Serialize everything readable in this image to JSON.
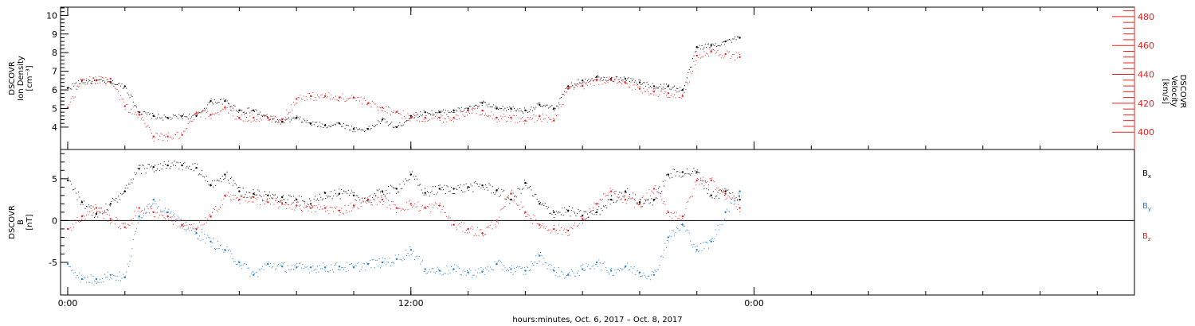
{
  "chart_data": [
    {
      "type": "scatter",
      "panel": "density-velocity",
      "ylabel_lines": [
        "DSCOVR",
        "Ion  Density",
        "[cm⁻³]"
      ],
      "ylabel_right_lines": [
        "DSCOVR",
        "Velocity",
        "[km/s]"
      ],
      "ylim": [
        2.8,
        10.4
      ],
      "yticks": [
        4,
        5,
        6,
        7,
        8,
        9,
        10
      ],
      "ylim_right": [
        388,
        486
      ],
      "yticks_right": [
        400,
        420,
        440,
        460,
        480
      ],
      "right_axis_color": "#e8231e",
      "series": [
        {
          "axis": "left",
          "color": "#000000",
          "x": [
            0,
            0.5,
            1,
            1.5,
            2,
            2.5,
            3,
            3.5,
            4,
            4.5,
            5,
            5.5,
            6,
            6.5,
            7,
            7.5,
            8,
            8.5,
            9,
            9.5,
            10,
            10.5,
            11,
            11.5,
            12,
            12.5,
            13,
            13.5,
            14,
            14.5,
            15,
            15.5,
            16,
            16.5,
            17,
            17.5,
            18,
            18.5,
            19,
            19.5,
            20,
            20.5,
            21,
            21.5,
            22,
            22.5,
            23,
            23.5
          ],
          "y": [
            6.1,
            6.5,
            6.5,
            6.4,
            6.2,
            4.8,
            4.6,
            4.5,
            4.6,
            4.6,
            5.4,
            5.4,
            4.9,
            4.9,
            4.5,
            4.3,
            4.5,
            4.2,
            4.1,
            4.2,
            3.9,
            3.9,
            4.4,
            4.0,
            4.6,
            4.8,
            4.8,
            4.9,
            5.0,
            5.3,
            5.0,
            5.0,
            4.9,
            5.2,
            5.0,
            6.2,
            6.5,
            6.7,
            6.6,
            6.6,
            6.4,
            6.2,
            6.2,
            6.0,
            8.3,
            8.4,
            8.6,
            8.8
          ]
        },
        {
          "axis": "right",
          "color": "#e8231e",
          "x": [
            0,
            0.5,
            1,
            1.5,
            2,
            2.5,
            3,
            3.5,
            4,
            4.5,
            5,
            5.5,
            6,
            6.5,
            7,
            7.5,
            8,
            8.5,
            9,
            9.5,
            10,
            10.5,
            11,
            11.5,
            12,
            12.5,
            13,
            13.5,
            14,
            14.5,
            15,
            15.5,
            16,
            16.5,
            17,
            17.5,
            18,
            18.5,
            19,
            19.5,
            20,
            20.5,
            21,
            21.5,
            22,
            22.5,
            23,
            23.5
          ],
          "y": [
            417,
            436,
            436,
            437,
            418,
            412,
            397,
            397,
            398,
            413,
            412,
            417,
            410,
            410,
            410,
            409,
            423,
            425,
            425,
            424,
            424,
            420,
            417,
            414,
            410,
            410,
            410,
            410,
            415,
            415,
            410,
            410,
            408,
            411,
            408,
            430,
            432,
            436,
            436,
            434,
            430,
            428,
            427,
            425,
            453,
            456,
            454,
            452
          ]
        }
      ]
    },
    {
      "type": "scatter",
      "panel": "magnetic-field",
      "ylabel_lines": [
        "DSCOVR",
        "B",
        "[nT]"
      ],
      "ylim": [
        -8.9,
        8.5
      ],
      "yticks": [
        -5,
        0,
        5
      ],
      "zero_line": true,
      "legend_position": "right",
      "series": [
        {
          "name": "Bx",
          "color": "#000000",
          "x": [
            0,
            0.5,
            1,
            1.5,
            2,
            2.5,
            3,
            3.5,
            4,
            4.5,
            5,
            5.5,
            6,
            6.5,
            7,
            7.5,
            8,
            8.5,
            9,
            9.5,
            10,
            10.5,
            11,
            11.5,
            12,
            12.5,
            13,
            13.5,
            14,
            14.5,
            15,
            15.5,
            16,
            16.5,
            17,
            17.5,
            18,
            18.5,
            19,
            19.5,
            20,
            20.5,
            21,
            21.5,
            22,
            22.5,
            23,
            23.5
          ],
          "y": [
            4.8,
            2.2,
            0.8,
            2.0,
            3.5,
            6.2,
            6.4,
            6.6,
            6.6,
            6.3,
            4.2,
            5.5,
            3.5,
            3.2,
            3.0,
            2.8,
            2.5,
            2.0,
            3.3,
            3.2,
            3.0,
            2.5,
            3.5,
            3.8,
            5.5,
            3.3,
            3.8,
            3.8,
            4.0,
            4.2,
            3.6,
            2.5,
            4.5,
            2.0,
            1.0,
            1.2,
            0.6,
            1.0,
            2.5,
            3.5,
            2.2,
            2.5,
            5.5,
            5.8,
            5.8,
            3.0,
            3.5,
            2.5
          ]
        },
        {
          "name": "By",
          "color": "#1f7fd0",
          "x": [
            0,
            0.5,
            1,
            1.5,
            2,
            2.5,
            3,
            3.5,
            4,
            4.5,
            5,
            5.5,
            6,
            6.5,
            7,
            7.5,
            8,
            8.5,
            9,
            9.5,
            10,
            10.5,
            11,
            11.5,
            12,
            12.5,
            13,
            13.5,
            14,
            14.5,
            15,
            15.5,
            16,
            16.5,
            17,
            17.5,
            18,
            18.5,
            19,
            19.5,
            20,
            20.5,
            21,
            21.5,
            22,
            22.5,
            23,
            23.5
          ],
          "y": [
            -5.2,
            -7.0,
            -7.0,
            -6.5,
            -6.8,
            0.5,
            2.5,
            1.0,
            -0.5,
            -1.5,
            -2.5,
            -3.5,
            -5.0,
            -6.5,
            -5.2,
            -5.5,
            -5.6,
            -5.6,
            -5.6,
            -5.5,
            -5.6,
            -5.2,
            -5.0,
            -4.6,
            -3.5,
            -5.8,
            -6.0,
            -5.8,
            -6.2,
            -6.1,
            -5.2,
            -5.8,
            -6.0,
            -4.2,
            -6.0,
            -6.5,
            -5.8,
            -5.0,
            -6.0,
            -5.5,
            -6.2,
            -6.5,
            -2.0,
            -0.5,
            -3.5,
            -2.5,
            1.0,
            3.5
          ]
        },
        {
          "name": "Bz",
          "color": "#e8231e",
          "x": [
            0,
            0.5,
            1,
            1.5,
            2,
            2.5,
            3,
            3.5,
            4,
            4.5,
            5,
            5.5,
            6,
            6.5,
            7,
            7.5,
            8,
            8.5,
            9,
            9.5,
            10,
            10.5,
            11,
            11.5,
            12,
            12.5,
            13,
            13.5,
            14,
            14.5,
            15,
            15.5,
            16,
            16.5,
            17,
            17.5,
            18,
            18.5,
            19,
            19.5,
            20,
            20.5,
            21,
            21.5,
            22,
            22.5,
            23,
            23.5
          ],
          "y": [
            -1.0,
            0.5,
            1.5,
            0.2,
            -0.8,
            1.5,
            1.0,
            0.5,
            -0.5,
            -1.0,
            0.5,
            3.0,
            2.5,
            2.8,
            2.2,
            2.0,
            1.8,
            1.5,
            1.5,
            1.2,
            1.8,
            2.5,
            2.5,
            1.5,
            2.0,
            1.5,
            1.8,
            -0.5,
            -1.0,
            -1.5,
            0.0,
            3.2,
            1.0,
            -0.5,
            -1.0,
            -1.2,
            0.2,
            2.0,
            3.5,
            2.5,
            2.0,
            3.8,
            1.0,
            0.5,
            4.8,
            4.8,
            3.2,
            1.5
          ]
        }
      ]
    }
  ],
  "x_axis": {
    "xlim": [
      -0.25,
      37.3
    ],
    "tick_labels": [
      {
        "x": 0,
        "label": "0:00"
      },
      {
        "x": 12,
        "label": "12:00"
      },
      {
        "x": 24,
        "label": "0:00"
      }
    ],
    "minor_step_hours": 2,
    "title": "hours:minutes,  Oct.  6, 2017 – Oct.  8, 2017"
  },
  "legend": [
    {
      "base": "B",
      "sub": "x",
      "color": "#000000"
    },
    {
      "base": "B",
      "sub": "y",
      "color": "#1f7fd0"
    },
    {
      "base": "B",
      "sub": "z",
      "color": "#e8231e"
    }
  ]
}
